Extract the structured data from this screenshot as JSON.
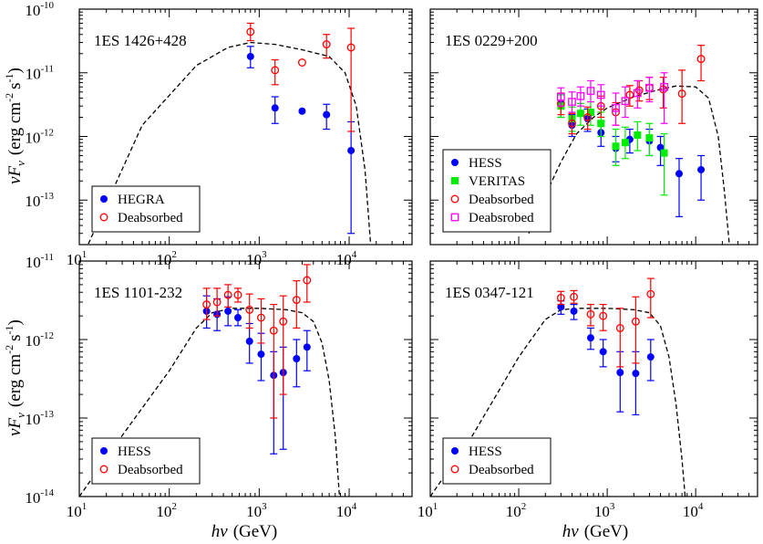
{
  "chart_data": [
    {
      "type": "scatter",
      "title": "1ES 1426+428",
      "xlabel": "",
      "ylabel": "νF_ν (erg cm^-2 s^-1)",
      "xlog": true,
      "ylog": true,
      "xlim": [
        10,
        50000
      ],
      "ylim": [
        2e-14,
        1e-10
      ],
      "xticks": [
        {
          "v": 10,
          "b": "10",
          "e": "1"
        },
        {
          "v": 100,
          "b": "10",
          "e": "2"
        },
        {
          "v": 1000,
          "b": "10",
          "e": "3"
        },
        {
          "v": 10000,
          "b": "10",
          "e": "4"
        }
      ],
      "yticks": [
        {
          "v": 1e-13,
          "b": "10",
          "e": "-13"
        },
        {
          "v": 1e-12,
          "b": "10",
          "e": "-12"
        },
        {
          "v": 1e-11,
          "b": "10",
          "e": "-11"
        },
        {
          "v": 1e-10,
          "b": "10",
          "e": "-10"
        }
      ],
      "legend_position": "bottom-left",
      "series": [
        {
          "name": "HEGRA",
          "marker": "filled-circle",
          "color": "#0000ff",
          "points": [
            [
              800,
              1.8e-11,
              1.2e-11,
              2.6e-11
            ],
            [
              1500,
              2.8e-12,
              1.6e-12,
              4.2e-12
            ],
            [
              3000,
              2.5e-12,
              null,
              null
            ],
            [
              5600,
              2.2e-12,
              1.3e-12,
              3.2e-12
            ],
            [
              10500,
              6e-13,
              3e-14,
              1.7e-12
            ]
          ]
        },
        {
          "name": "Deabsorbed",
          "marker": "open-circle",
          "color": "#ff0000",
          "points": [
            [
              800,
              4.4e-11,
              3.2e-11,
              6e-11
            ],
            [
              1500,
              1.1e-11,
              6.5e-12,
              1.6e-11
            ],
            [
              3000,
              1.45e-11,
              null,
              null
            ],
            [
              5600,
              2.8e-11,
              1.7e-11,
              4e-11
            ],
            [
              10500,
              2.5e-11,
              1.2e-12,
              5e-11
            ]
          ]
        }
      ],
      "model_curve": [
        [
          10,
          1e-14
        ],
        [
          50,
          1.5e-12
        ],
        [
          200,
          1.3e-11
        ],
        [
          450,
          2.5e-11
        ],
        [
          800,
          3e-11
        ],
        [
          1500,
          2.8e-11
        ],
        [
          3000,
          2.3e-11
        ],
        [
          6000,
          1.8e-11
        ],
        [
          9000,
          1e-11
        ],
        [
          12000,
          3e-12
        ],
        [
          15000,
          3e-13
        ],
        [
          18000,
          1e-14
        ]
      ]
    },
    {
      "type": "scatter",
      "title": "1ES 0229+200",
      "xlabel": "",
      "ylabel": "",
      "xlog": true,
      "ylog": true,
      "xlim": [
        10,
        50000
      ],
      "ylim": [
        2e-14,
        1e-10
      ],
      "xticks": [
        {
          "v": 10,
          "b": "",
          "e": ""
        },
        {
          "v": 100,
          "b": "",
          "e": ""
        },
        {
          "v": 1000,
          "b": "",
          "e": ""
        },
        {
          "v": 10000,
          "b": "",
          "e": ""
        }
      ],
      "yticks": [
        {
          "v": 1e-13,
          "b": "",
          "e": ""
        },
        {
          "v": 1e-12,
          "b": "",
          "e": ""
        },
        {
          "v": 1e-11,
          "b": "",
          "e": ""
        },
        {
          "v": 1e-10,
          "b": "",
          "e": ""
        }
      ],
      "legend_position": "bottom-left",
      "series": [
        {
          "name": "HESS",
          "marker": "filled-circle",
          "color": "#0000ff",
          "points": [
            [
              300,
              3.2e-12,
              2e-12,
              4.5e-12
            ],
            [
              400,
              1.5e-12,
              1e-12,
              2.2e-12
            ],
            [
              600,
              1.9e-12,
              1.2e-12,
              2.7e-12
            ],
            [
              850,
              1.15e-12,
              7e-13,
              1.7e-12
            ],
            [
              1250,
              6.5e-13,
              4e-13,
              1e-12
            ],
            [
              1800,
              9e-13,
              5.5e-13,
              1.3e-12
            ],
            [
              3000,
              8.5e-13,
              5e-13,
              1.3e-12
            ],
            [
              4000,
              6.7e-13,
              3.5e-13,
              1e-12
            ],
            [
              6500,
              2.6e-13,
              5.5e-14,
              4.5e-13
            ],
            [
              11500,
              3e-13,
              1e-13,
              5e-13
            ]
          ]
        },
        {
          "name": "VERITAS",
          "marker": "filled-square",
          "color": "#00ee00",
          "points": [
            [
              300,
              3e-12,
              2e-12,
              4.5e-12
            ],
            [
              400,
              1.9e-12,
              1.2e-12,
              2.9e-12
            ],
            [
              500,
              2.3e-12,
              1.5e-12,
              3.3e-12
            ],
            [
              650,
              2.4e-12,
              1.5e-12,
              3.5e-12
            ],
            [
              850,
              1.6e-12,
              1e-12,
              2.4e-12
            ],
            [
              1250,
              7e-13,
              3.5e-13,
              1.3e-12
            ],
            [
              1600,
              8e-13,
              4.5e-13,
              1.4e-12
            ],
            [
              2200,
              1.05e-12,
              6e-13,
              1.7e-12
            ],
            [
              3000,
              9.5e-13,
              5e-13,
              1.6e-12
            ],
            [
              4400,
              5.5e-13,
              1.2e-13,
              1.1e-12
            ]
          ]
        },
        {
          "name": "Deabsorbed",
          "marker": "open-circle",
          "color": "#ff0000",
          "points": [
            [
              300,
              3.3e-12,
              2.2e-12,
              4.8e-12
            ],
            [
              400,
              1.6e-12,
              1.1e-12,
              2.3e-12
            ],
            [
              600,
              2e-12,
              1.3e-12,
              2.9e-12
            ],
            [
              850,
              3e-12,
              2e-12,
              4.3e-12
            ],
            [
              1250,
              2.4e-12,
              1.5e-12,
              3.4e-12
            ],
            [
              1800,
              4.5e-12,
              3e-12,
              6.3e-12
            ],
            [
              2300,
              5.3e-12,
              3.6e-12,
              7.5e-12
            ],
            [
              3000,
              5.8e-12,
              3.8e-12,
              8.5e-12
            ],
            [
              4300,
              5.5e-12,
              2.8e-12,
              8.5e-12
            ],
            [
              7000,
              4.7e-12,
              1.6e-12,
              1.1e-11
            ],
            [
              11500,
              1.65e-11,
              7.5e-12,
              2.7e-11
            ]
          ]
        },
        {
          "name": "Deabsrobed",
          "marker": "open-square",
          "color": "#ff00ff",
          "points": [
            [
              300,
              4.2e-12,
              3e-12,
              5.8e-12
            ],
            [
              400,
              3.5e-12,
              2.4e-12,
              5e-12
            ],
            [
              500,
              4.3e-12,
              3e-12,
              6e-12
            ],
            [
              650,
              5.2e-12,
              3.5e-12,
              7.5e-12
            ],
            [
              850,
              4.5e-12,
              3e-12,
              6.5e-12
            ],
            [
              1250,
              2.8e-12,
              1.5e-12,
              4.8e-12
            ],
            [
              1600,
              3.6e-12,
              2e-12,
              6e-12
            ],
            [
              2200,
              4.8e-12,
              2.8e-12,
              7.5e-12
            ],
            [
              3000,
              5.8e-12,
              3.5e-12,
              8.5e-12
            ],
            [
              4400,
              6e-12,
              1.6e-12,
              1e-11
            ]
          ]
        }
      ],
      "model_curve": [
        [
          130,
          3e-14
        ],
        [
          200,
          1.2e-13
        ],
        [
          300,
          4e-13
        ],
        [
          450,
          1.1e-12
        ],
        [
          700,
          2e-12
        ],
        [
          1000,
          2.8e-12
        ],
        [
          2000,
          4.2e-12
        ],
        [
          4000,
          5.5e-12
        ],
        [
          6000,
          6.2e-12
        ],
        [
          10000,
          6e-12
        ],
        [
          14000,
          4e-12
        ],
        [
          18000,
          1e-12
        ],
        [
          21000,
          1.5e-13
        ],
        [
          24000,
          2e-14
        ]
      ]
    },
    {
      "type": "scatter",
      "title": "1ES 1101-232",
      "xlabel": "",
      "ylabel": "νF_ν (erg cm^-2 s^-1)",
      "xlog": true,
      "ylog": true,
      "xlim": [
        10,
        50000
      ],
      "ylim": [
        1e-14,
        1e-11
      ],
      "xticks": [
        {
          "v": 10,
          "b": "10",
          "e": "1"
        },
        {
          "v": 100,
          "b": "10",
          "e": "2"
        },
        {
          "v": 1000,
          "b": "10",
          "e": "3"
        },
        {
          "v": 10000,
          "b": "10",
          "e": "4"
        }
      ],
      "yticks": [
        {
          "v": 1e-14,
          "b": "10",
          "e": "-14"
        },
        {
          "v": 1e-13,
          "b": "10",
          "e": "-13"
        },
        {
          "v": 1e-12,
          "b": "10",
          "e": "-12"
        },
        {
          "v": 1e-11,
          "b": "10",
          "e": "-11"
        }
      ],
      "legend_position": "bottom-left",
      "series": [
        {
          "name": "HESS",
          "marker": "filled-circle",
          "color": "#0000ff",
          "points": [
            [
              260,
              2.3e-12,
              1.4e-12,
              3.6e-12
            ],
            [
              340,
              2.1e-12,
              1.3e-12,
              3.3e-12
            ],
            [
              450,
              2.3e-12,
              1.5e-12,
              3.5e-12
            ],
            [
              580,
              1.9e-12,
              1.5e-12,
              2.4e-12
            ],
            [
              780,
              9.5e-13,
              5e-13,
              1.6e-12
            ],
            [
              1050,
              6.5e-13,
              3e-13,
              1.2e-12
            ],
            [
              1450,
              3.5e-13,
              3.5e-14,
              7e-13
            ],
            [
              1850,
              3.8e-13,
              4e-14,
              8e-13
            ],
            [
              2600,
              5.7e-13,
              2.5e-13,
              1e-12
            ],
            [
              3400,
              8e-13,
              4e-13,
              1.3e-12
            ]
          ]
        },
        {
          "name": "Deabsorbed",
          "marker": "open-circle",
          "color": "#ff0000",
          "points": [
            [
              260,
              2.8e-12,
              1.8e-12,
              4.5e-12
            ],
            [
              340,
              3e-12,
              2e-12,
              4.5e-12
            ],
            [
              450,
              3.7e-12,
              2.6e-12,
              5e-12
            ],
            [
              580,
              3.7e-12,
              3e-12,
              4.5e-12
            ],
            [
              780,
              2.4e-12,
              1.4e-12,
              3.8e-12
            ],
            [
              1050,
              1.9e-12,
              9e-13,
              3.3e-12
            ],
            [
              1450,
              1.3e-12,
              1e-13,
              2.8e-12
            ],
            [
              1850,
              1.7e-12,
              2e-13,
              3.6e-12
            ],
            [
              2600,
              3.2e-12,
              1.4e-12,
              5.6e-12
            ],
            [
              3400,
              5.7e-12,
              3e-12,
              9e-12
            ]
          ]
        }
      ],
      "model_curve": [
        [
          10,
          1e-14
        ],
        [
          30,
          6e-14
        ],
        [
          100,
          4e-13
        ],
        [
          200,
          1.4e-12
        ],
        [
          300,
          2.2e-12
        ],
        [
          500,
          2.5e-12
        ],
        [
          1000,
          2.5e-12
        ],
        [
          2000,
          2.4e-12
        ],
        [
          3000,
          2.2e-12
        ],
        [
          4000,
          1.7e-12
        ],
        [
          5000,
          9e-13
        ],
        [
          6000,
          3e-13
        ],
        [
          7000,
          6e-14
        ],
        [
          7800,
          1e-14
        ]
      ]
    },
    {
      "type": "scatter",
      "title": "1ES 0347-121",
      "xlabel": "",
      "ylabel": "",
      "xlog": true,
      "ylog": true,
      "xlim": [
        10,
        50000
      ],
      "ylim": [
        1e-14,
        1e-11
      ],
      "xticks": [
        {
          "v": 10,
          "b": "10",
          "e": "1"
        },
        {
          "v": 100,
          "b": "10",
          "e": "2"
        },
        {
          "v": 1000,
          "b": "10",
          "e": "3"
        },
        {
          "v": 10000,
          "b": "10",
          "e": "4"
        }
      ],
      "yticks": [
        {
          "v": 1e-14,
          "b": "",
          "e": ""
        },
        {
          "v": 1e-13,
          "b": "",
          "e": ""
        },
        {
          "v": 1e-12,
          "b": "",
          "e": ""
        },
        {
          "v": 1e-11,
          "b": "",
          "e": ""
        }
      ],
      "legend_position": "bottom-left",
      "series": [
        {
          "name": "HESS",
          "marker": "filled-circle",
          "color": "#0000ff",
          "points": [
            [
              300,
              2.6e-12,
              2.1e-12,
              3.1e-12
            ],
            [
              420,
              2.3e-12,
              1.8e-12,
              2.8e-12
            ],
            [
              650,
              1.05e-12,
              7.5e-13,
              1.4e-12
            ],
            [
              900,
              7e-13,
              4.5e-13,
              1e-12
            ],
            [
              1400,
              3.8e-13,
              1.2e-13,
              7e-13
            ],
            [
              2100,
              3.7e-13,
              1.1e-13,
              7e-13
            ],
            [
              3100,
              6e-13,
              3e-13,
              1e-12
            ]
          ]
        },
        {
          "name": "Deabsorbed",
          "marker": "open-circle",
          "color": "#ff0000",
          "points": [
            [
              300,
              3.4e-12,
              2.8e-12,
              4.1e-12
            ],
            [
              420,
              3.5e-12,
              2.9e-12,
              4.2e-12
            ],
            [
              650,
              2.1e-12,
              1.5e-12,
              2.8e-12
            ],
            [
              900,
              2e-12,
              1.3e-12,
              2.8e-12
            ],
            [
              1400,
              1.4e-12,
              4.5e-13,
              2.5e-12
            ],
            [
              2100,
              1.7e-12,
              5e-13,
              3.5e-12
            ],
            [
              3100,
              3.8e-12,
              1.9e-12,
              6e-12
            ]
          ]
        }
      ],
      "model_curve": [
        [
          10,
          1e-14
        ],
        [
          30,
          6e-14
        ],
        [
          100,
          6e-13
        ],
        [
          200,
          1.8e-12
        ],
        [
          300,
          2.4e-12
        ],
        [
          500,
          2.5e-12
        ],
        [
          1000,
          2.5e-12
        ],
        [
          2000,
          2.4e-12
        ],
        [
          3000,
          2.2e-12
        ],
        [
          4000,
          1.5e-12
        ],
        [
          5000,
          6e-13
        ],
        [
          6000,
          1.5e-13
        ],
        [
          7000,
          3e-14
        ],
        [
          7600,
          1e-14
        ]
      ]
    }
  ],
  "figure": {
    "y_axis_label_main": "νF",
    "y_axis_label_sub": "ν",
    "y_axis_label_units": "(erg cm",
    "y_axis_label_exp1": "-2",
    "y_axis_label_s": "s",
    "y_axis_label_exp2": "-1",
    "y_axis_label_close": ")",
    "x_axis_label_var": "hν",
    "x_axis_label_units": "(GeV)"
  }
}
